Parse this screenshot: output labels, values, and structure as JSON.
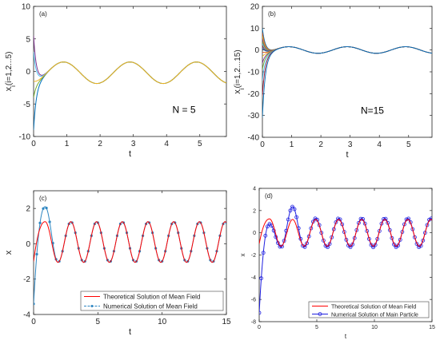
{
  "chart_data": [
    {
      "panel": "(a)",
      "type": "line",
      "xlabel": "t",
      "ylabel": "x",
      "ylabel_sub": "i",
      "ylabel_suffix": "(i=1,2...5)",
      "annotation": "N = 5",
      "xlim": [
        0,
        5.8
      ],
      "ylim": [
        -10,
        10
      ],
      "xticks": [
        "0",
        "1",
        "2",
        "3",
        "4",
        "5"
      ],
      "yticks": [
        "-10",
        "-5",
        "0",
        "5",
        "10"
      ],
      "series": [
        {
          "start": 5.5,
          "color": "#7e2f8e"
        },
        {
          "start": 3.0,
          "color": "#4dbeee"
        },
        {
          "start": -9.0,
          "color": "#0072bd"
        },
        {
          "start": -4.0,
          "color": "#77ac30"
        },
        {
          "start": -1.5,
          "color": "#edb120"
        }
      ],
      "mean_field": {
        "offset": -0.2,
        "amplitude": 1.65,
        "period": 2.0,
        "peak_t": 0.9,
        "decay_rate": 12
      }
    },
    {
      "panel": "(b)",
      "type": "line",
      "xlabel": "t",
      "ylabel": "x",
      "ylabel_sub": "i",
      "ylabel_suffix": "(i=1,2...15)",
      "annotation": "N=15",
      "xlim": [
        0,
        5.8
      ],
      "ylim": [
        -40,
        20
      ],
      "xticks": [
        "0",
        "1",
        "2",
        "3",
        "4",
        "5"
      ],
      "yticks": [
        "-40",
        "-30",
        "-20",
        "-10",
        "0",
        "10",
        "20"
      ],
      "series_starts": [
        10,
        8,
        6.5,
        5,
        4,
        3,
        2,
        1,
        -1,
        -3,
        -6,
        -9,
        -14,
        -21,
        -31
      ],
      "series_colors": [
        "#0072bd",
        "#d95319",
        "#edb120",
        "#7e2f8e",
        "#77ac30",
        "#4dbeee",
        "#a2142f"
      ],
      "mean_field": {
        "offset": 0,
        "amplitude": 1.5,
        "period": 2.0,
        "peak_t": 0.9,
        "decay_rate": 10
      }
    },
    {
      "panel": "(c)",
      "type": "line",
      "xlabel": "t",
      "ylabel": "x",
      "xlim": [
        0,
        15
      ],
      "ylim": [
        -4,
        3
      ],
      "xticks": [
        "0",
        "5",
        "10",
        "15"
      ],
      "yticks": [
        "-4",
        "-2",
        "0",
        "2"
      ],
      "legend": {
        "position": "bottom-right",
        "entries": [
          "Theoretical Solution of Mean Field",
          "Numerical Solution of Mean Field"
        ]
      },
      "series": [
        {
          "name": "Theoretical Solution of Mean Field",
          "color": "#ff0000",
          "start": -1.0,
          "first_peak": 1.25,
          "offset": 0.1,
          "amplitude": 1.15,
          "period": 2.0,
          "peak_t": 0.9
        },
        {
          "name": "Numerical Solution of Mean Field",
          "color": "#2e86c1",
          "start": -3.4,
          "first_peak": 2.1,
          "offset": 0.1,
          "amplitude": 1.15,
          "period": 2.0,
          "peak_t": 0.9,
          "marker_step": 0.25
        }
      ]
    },
    {
      "panel": "(d)",
      "type": "line",
      "xlabel": "t",
      "ylabel": "x",
      "xlim": [
        0,
        15
      ],
      "ylim": [
        -8,
        4
      ],
      "xticks": [
        "0",
        "5",
        "10",
        "15"
      ],
      "yticks": [
        "-8",
        "-6",
        "-4",
        "-2",
        "0",
        "2",
        "4"
      ],
      "legend": {
        "position": "bottom-right",
        "entries": [
          "Theoretical Solution of Mean Field",
          "Numerical Solution of Main Particle"
        ]
      },
      "series": [
        {
          "name": "Theoretical Solution of Mean Field",
          "color": "#ff0000",
          "start": -1.0,
          "first_peak": 1.25,
          "offset": 0.0,
          "amplitude": 1.2,
          "period": 2.0,
          "peak_t": 0.9
        },
        {
          "name": "Numerical Solution of Main Particle",
          "color": "#2020e0",
          "start": -7.2,
          "first_peak": 0.8,
          "second_peak": 2.35,
          "offset": 0.0,
          "amplitude": 1.3,
          "period": 2.0,
          "peak_t": 0.9,
          "marker_step": 0.18
        }
      ]
    }
  ]
}
